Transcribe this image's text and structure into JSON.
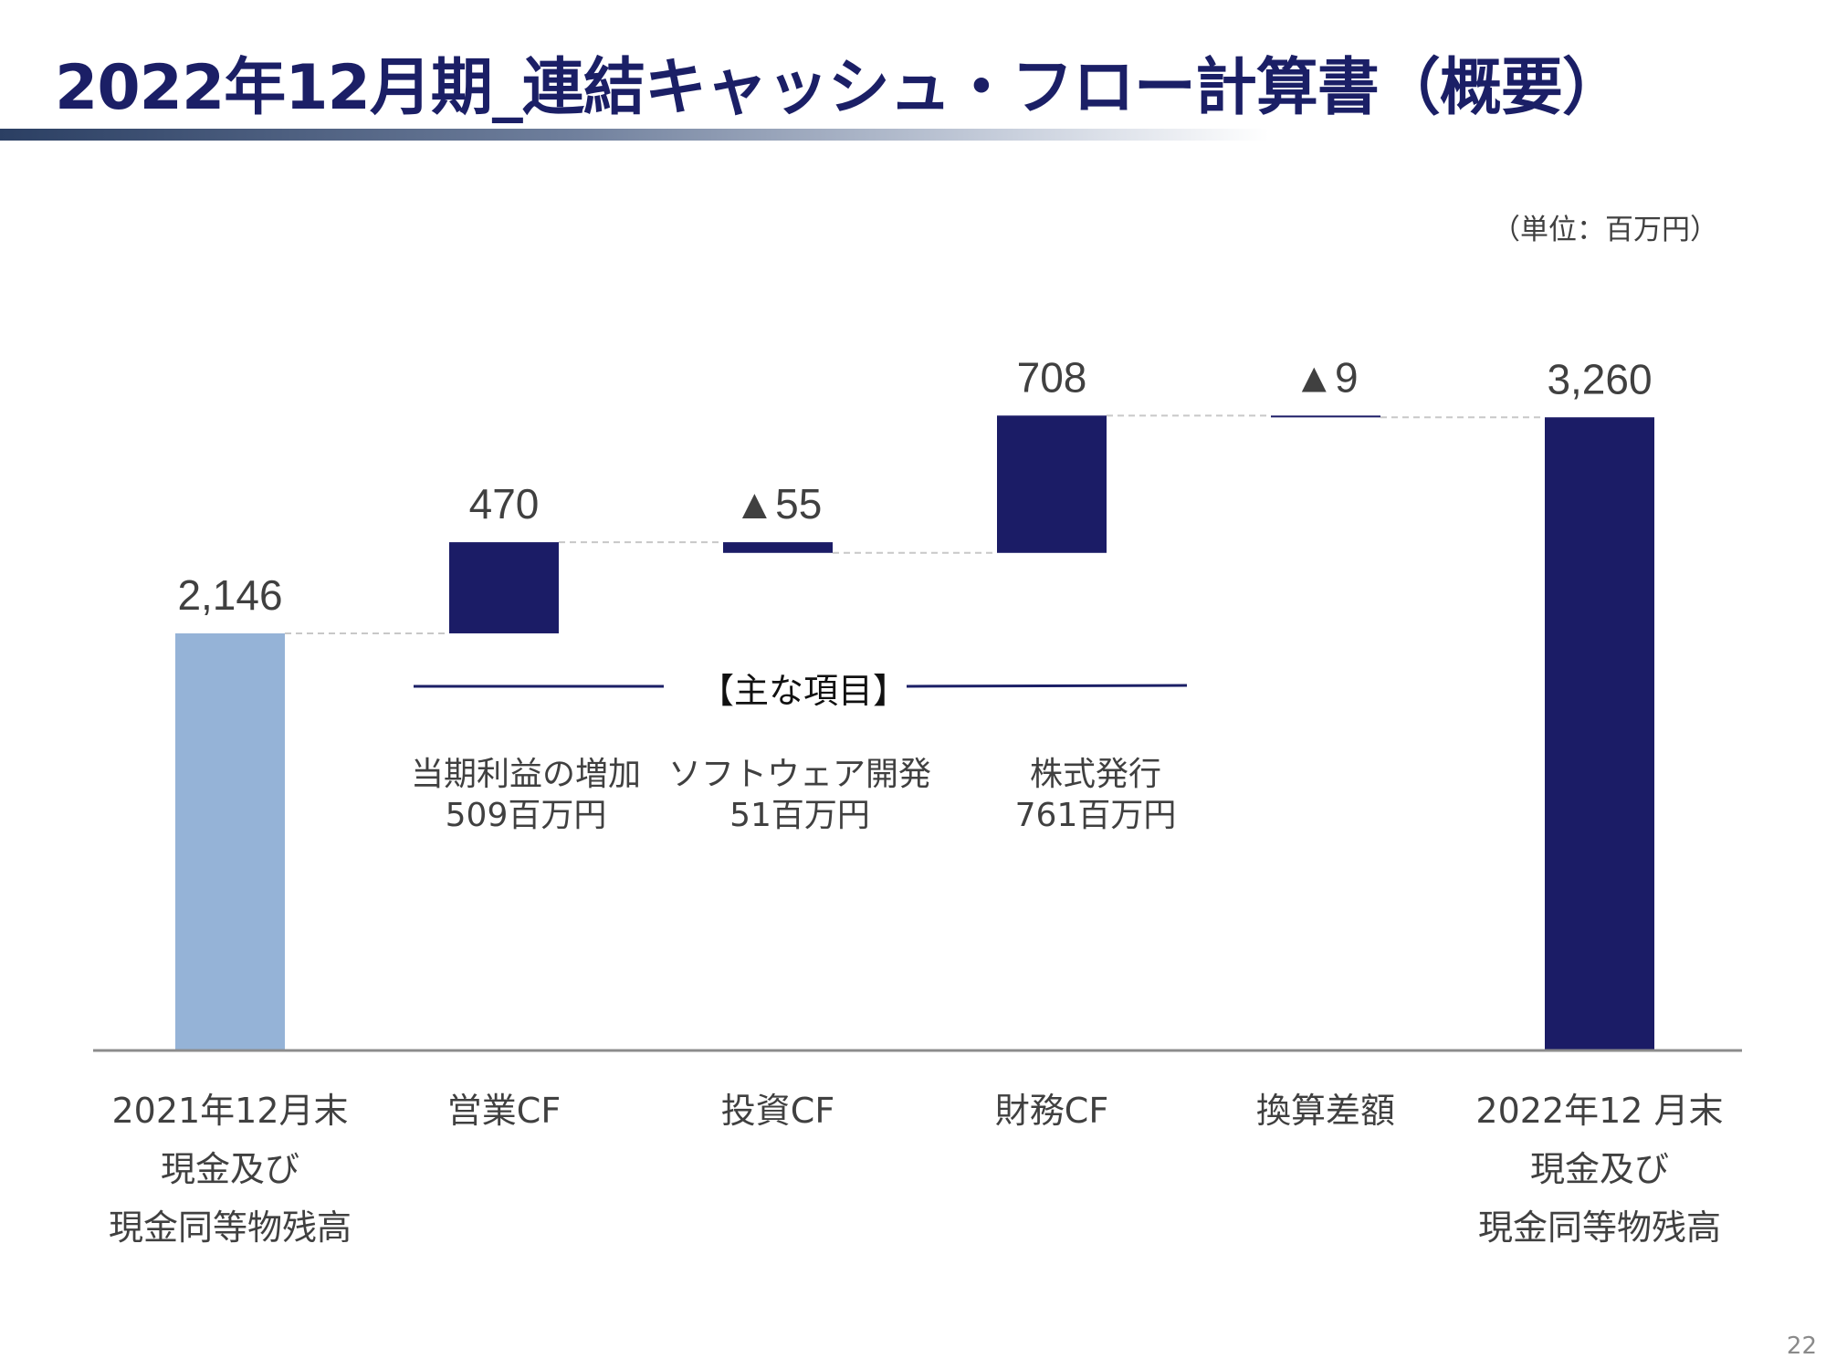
{
  "title": "2022年12月期_連結キャッシュ・フロー計算書（概要）",
  "unit_label": "（単位：百万円）",
  "page_number": "22",
  "colors": {
    "title": "#1b1f66",
    "bar_dark": "#1b1c66",
    "bar_light": "#95b3d7",
    "axis": "#8c8c8c",
    "connector": "#c8c8c8"
  },
  "chart_data": {
    "type": "bar",
    "subtype": "waterfall",
    "categories": [
      "2021年12月末\n現金及び\n現金同等物残高",
      "営業CF",
      "投資CF",
      "財務CF",
      "換算差額",
      "2022年12 月末\n現金及び\n現金同等物残高"
    ],
    "values": [
      2146,
      470,
      -55,
      708,
      -9,
      3260
    ],
    "data_labels": [
      "2,146",
      "470",
      "▲55",
      "708",
      "▲9",
      "3,260"
    ],
    "measures": [
      "absolute",
      "relative",
      "relative",
      "relative",
      "relative",
      "absolute"
    ],
    "ylim": [
      0,
      3600
    ],
    "grid": false,
    "legend": "none",
    "title": "",
    "xlabel": "",
    "ylabel": ""
  },
  "key_items": {
    "heading": "【主な項目】",
    "items": [
      {
        "line1": "当期利益の増加",
        "line2": "509百万円"
      },
      {
        "line1": "ソフトウェア開発",
        "line2": "51百万円"
      },
      {
        "line1": "株式発行",
        "line2": "761百万円"
      }
    ]
  }
}
